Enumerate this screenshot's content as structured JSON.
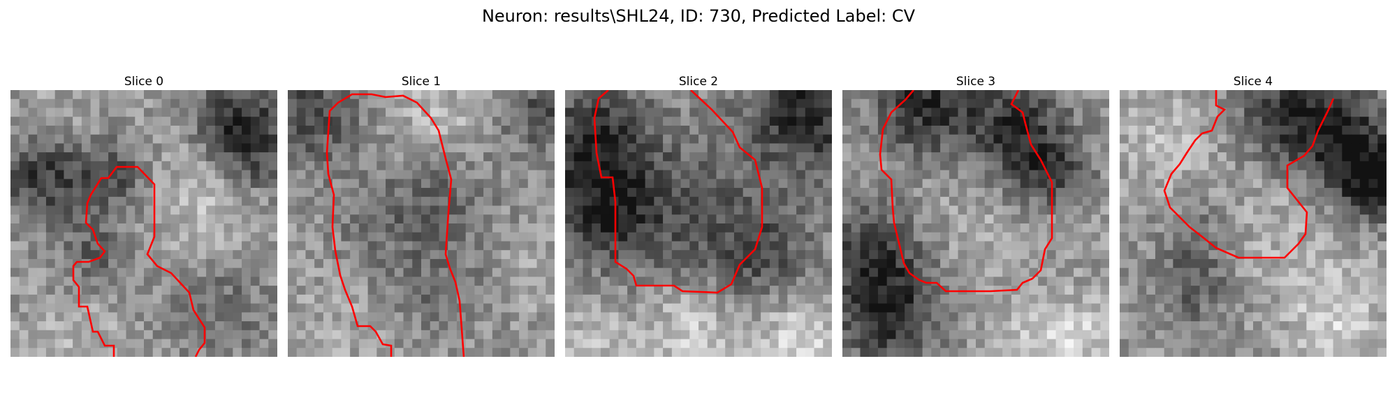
{
  "figure": {
    "title": "Neuron: results\\SHL24, ID: 730, Predicted Label: CV"
  },
  "colors": {
    "background": "#ffffff",
    "contour": "#ff0000",
    "image_colormap": "grayscale"
  },
  "slices": [
    {
      "title": "Slice 0"
    },
    {
      "title": "Slice 1"
    },
    {
      "title": "Slice 2"
    },
    {
      "title": "Slice 3"
    },
    {
      "title": "Slice 4"
    }
  ]
}
